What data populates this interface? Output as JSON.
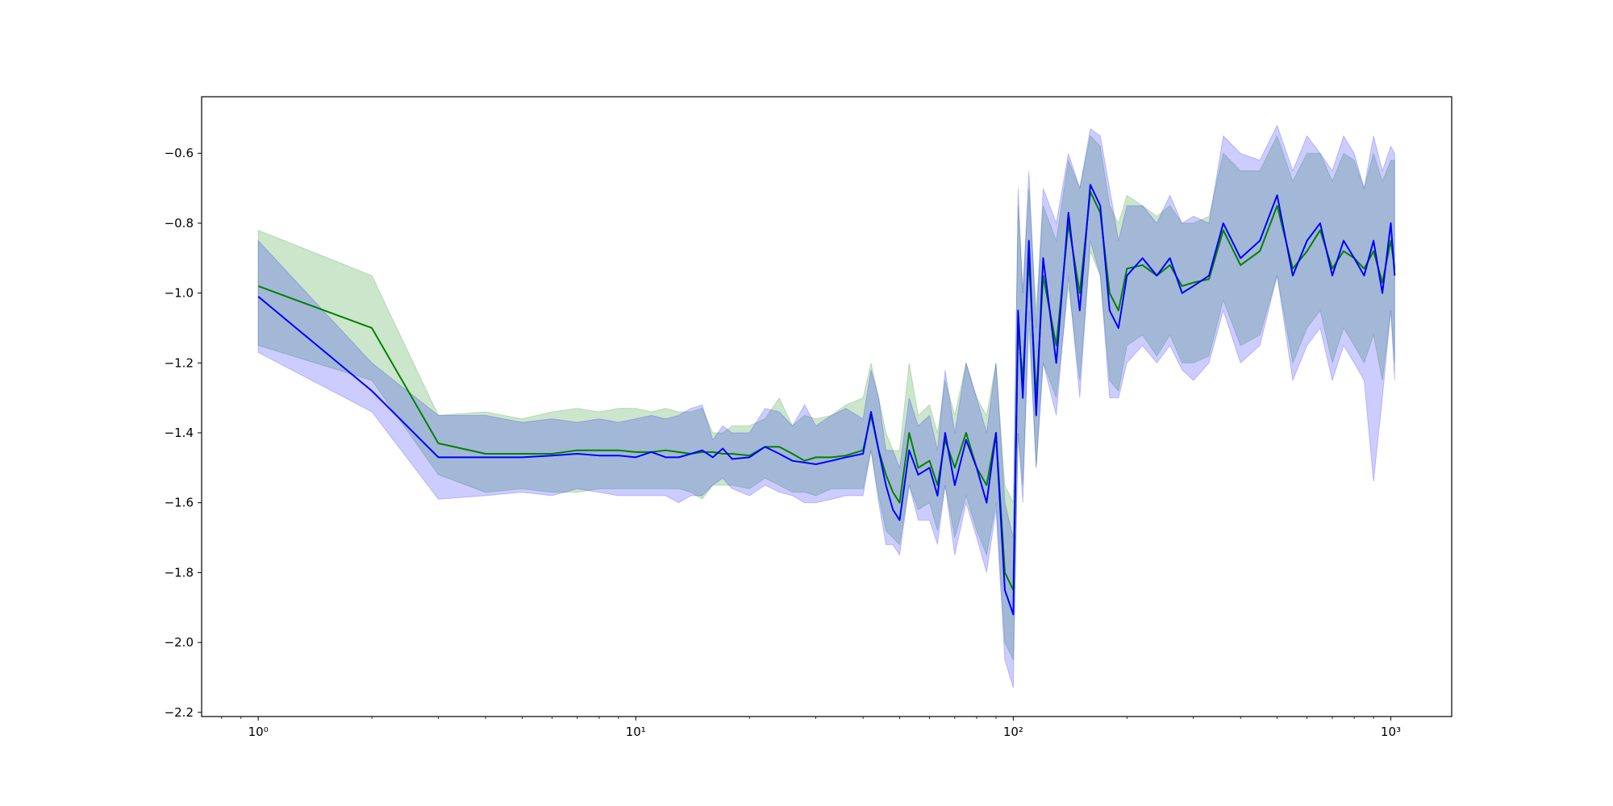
{
  "chart_data": {
    "type": "line",
    "xscale": "log",
    "xlim": [
      0.708,
      1450
    ],
    "ylim": [
      -2.212,
      -0.438
    ],
    "xticks": [
      {
        "value": 1,
        "label": "10⁰"
      },
      {
        "value": 10,
        "label": "10¹"
      },
      {
        "value": 100,
        "label": "10²"
      },
      {
        "value": 1000,
        "label": "10³"
      }
    ],
    "xminorticks": [
      0.8,
      0.9,
      2,
      3,
      4,
      5,
      6,
      7,
      8,
      9,
      20,
      30,
      40,
      50,
      60,
      70,
      80,
      90,
      200,
      300,
      400,
      500,
      600,
      700,
      800,
      900
    ],
    "yticks": [
      {
        "value": -0.6,
        "label": "−0.6"
      },
      {
        "value": -0.8,
        "label": "−0.8"
      },
      {
        "value": -1.0,
        "label": "−1.0"
      },
      {
        "value": -1.2,
        "label": "−1.2"
      },
      {
        "value": -1.4,
        "label": "−1.4"
      },
      {
        "value": -1.6,
        "label": "−1.6"
      },
      {
        "value": -1.8,
        "label": "−1.8"
      },
      {
        "value": -2.0,
        "label": "−2.0"
      },
      {
        "value": -2.2,
        "label": "−2.2"
      }
    ],
    "x": [
      1,
      2,
      3,
      4,
      5,
      6,
      7,
      8,
      9,
      10,
      11,
      12,
      13,
      14,
      15,
      16,
      17,
      18,
      20,
      22,
      24,
      26,
      28,
      30,
      33,
      36,
      40,
      42,
      44,
      46,
      48,
      50,
      53,
      56,
      60,
      63,
      66,
      70,
      75,
      80,
      85,
      90,
      95,
      100,
      103,
      106,
      110,
      115,
      120,
      130,
      140,
      150,
      160,
      170,
      180,
      190,
      200,
      220,
      240,
      260,
      280,
      300,
      330,
      360,
      400,
      450,
      500,
      550,
      600,
      650,
      700,
      750,
      800,
      850,
      900,
      950,
      1000,
      1024
    ],
    "series": [
      {
        "color": "#008000",
        "band_opacity": 0.2,
        "values": [
          -0.98,
          -1.1,
          -1.43,
          -1.46,
          -1.46,
          -1.46,
          -1.45,
          -1.45,
          -1.45,
          -1.455,
          -1.455,
          -1.45,
          -1.455,
          -1.46,
          -1.455,
          -1.455,
          -1.46,
          -1.46,
          -1.465,
          -1.44,
          -1.44,
          -1.46,
          -1.48,
          -1.47,
          -1.47,
          -1.465,
          -1.45,
          -1.35,
          -1.45,
          -1.52,
          -1.57,
          -1.6,
          -1.4,
          -1.5,
          -1.48,
          -1.55,
          -1.42,
          -1.5,
          -1.4,
          -1.5,
          -1.55,
          -1.4,
          -1.8,
          -1.85,
          -1.1,
          -1.25,
          -0.9,
          -1.3,
          -0.95,
          -1.15,
          -0.8,
          -1.0,
          -0.71,
          -0.77,
          -1.0,
          -1.05,
          -0.93,
          -0.92,
          -0.95,
          -0.92,
          -0.98,
          -0.97,
          -0.96,
          -0.82,
          -0.92,
          -0.88,
          -0.75,
          -0.93,
          -0.88,
          -0.82,
          -0.93,
          -0.88,
          -0.9,
          -0.93,
          -0.88,
          -0.97,
          -0.85,
          -0.93
        ],
        "upper": [
          -0.82,
          -0.95,
          -1.35,
          -1.34,
          -1.36,
          -1.34,
          -1.33,
          -1.34,
          -1.33,
          -1.33,
          -1.34,
          -1.33,
          -1.34,
          -1.34,
          -1.33,
          -1.4,
          -1.4,
          -1.38,
          -1.38,
          -1.36,
          -1.3,
          -1.38,
          -1.35,
          -1.36,
          -1.35,
          -1.32,
          -1.3,
          -1.2,
          -1.3,
          -1.4,
          -1.45,
          -1.45,
          -1.2,
          -1.35,
          -1.32,
          -1.4,
          -1.25,
          -1.35,
          -1.2,
          -1.3,
          -1.35,
          -1.2,
          -1.55,
          -1.6,
          -0.75,
          -1.0,
          -0.7,
          -1.05,
          -0.75,
          -0.85,
          -0.62,
          -0.7,
          -0.55,
          -0.58,
          -0.75,
          -0.8,
          -0.72,
          -0.75,
          -0.78,
          -0.75,
          -0.8,
          -0.8,
          -0.78,
          -0.6,
          -0.65,
          -0.65,
          -0.55,
          -0.68,
          -0.6,
          -0.6,
          -0.68,
          -0.6,
          -0.62,
          -0.7,
          -0.6,
          -0.68,
          -0.62,
          -0.62
        ],
        "lower": [
          -1.15,
          -1.25,
          -1.52,
          -1.57,
          -1.56,
          -1.57,
          -1.57,
          -1.56,
          -1.56,
          -1.56,
          -1.56,
          -1.56,
          -1.56,
          -1.57,
          -1.59,
          -1.55,
          -1.55,
          -1.55,
          -1.56,
          -1.53,
          -1.55,
          -1.57,
          -1.57,
          -1.58,
          -1.56,
          -1.56,
          -1.56,
          -1.45,
          -1.58,
          -1.68,
          -1.7,
          -1.72,
          -1.55,
          -1.62,
          -1.6,
          -1.68,
          -1.55,
          -1.7,
          -1.58,
          -1.68,
          -1.75,
          -1.6,
          -2.0,
          -2.05,
          -1.4,
          -1.55,
          -1.1,
          -1.5,
          -1.2,
          -1.3,
          -0.98,
          -1.25,
          -0.88,
          -0.95,
          -1.25,
          -1.28,
          -1.15,
          -1.12,
          -1.18,
          -1.12,
          -1.2,
          -1.2,
          -1.18,
          -1.02,
          -1.15,
          -1.12,
          -0.95,
          -1.2,
          -1.1,
          -1.05,
          -1.2,
          -1.1,
          -1.15,
          -1.2,
          -1.12,
          -1.25,
          -1.05,
          -1.2
        ]
      },
      {
        "color": "#0000ff",
        "band_opacity": 0.2,
        "values": [
          -1.01,
          -1.28,
          -1.47,
          -1.47,
          -1.47,
          -1.465,
          -1.46,
          -1.465,
          -1.465,
          -1.47,
          -1.455,
          -1.47,
          -1.47,
          -1.46,
          -1.45,
          -1.47,
          -1.445,
          -1.475,
          -1.47,
          -1.44,
          -1.46,
          -1.48,
          -1.485,
          -1.49,
          -1.48,
          -1.47,
          -1.46,
          -1.34,
          -1.45,
          -1.55,
          -1.62,
          -1.65,
          -1.45,
          -1.52,
          -1.5,
          -1.58,
          -1.4,
          -1.55,
          -1.42,
          -1.5,
          -1.6,
          -1.4,
          -1.85,
          -1.92,
          -1.05,
          -1.3,
          -0.85,
          -1.35,
          -0.9,
          -1.2,
          -0.77,
          -1.05,
          -0.69,
          -0.75,
          -1.05,
          -1.1,
          -0.95,
          -0.9,
          -0.95,
          -0.9,
          -1.0,
          -0.98,
          -0.95,
          -0.8,
          -0.9,
          -0.85,
          -0.72,
          -0.95,
          -0.85,
          -0.8,
          -0.95,
          -0.85,
          -0.9,
          -0.95,
          -0.85,
          -1.0,
          -0.8,
          -0.95
        ],
        "upper": [
          -0.85,
          -1.2,
          -1.35,
          -1.35,
          -1.37,
          -1.36,
          -1.37,
          -1.36,
          -1.37,
          -1.36,
          -1.35,
          -1.36,
          -1.35,
          -1.33,
          -1.32,
          -1.42,
          -1.38,
          -1.4,
          -1.4,
          -1.33,
          -1.34,
          -1.38,
          -1.32,
          -1.38,
          -1.35,
          -1.33,
          -1.36,
          -1.22,
          -1.3,
          -1.45,
          -1.45,
          -1.5,
          -1.3,
          -1.38,
          -1.35,
          -1.45,
          -1.22,
          -1.4,
          -1.2,
          -1.3,
          -1.4,
          -1.2,
          -1.6,
          -1.7,
          -0.7,
          -1.0,
          -0.65,
          -1.1,
          -0.7,
          -0.8,
          -0.6,
          -0.7,
          -0.53,
          -0.55,
          -0.7,
          -0.85,
          -0.75,
          -0.75,
          -0.8,
          -0.72,
          -0.8,
          -0.78,
          -0.8,
          -0.55,
          -0.6,
          -0.62,
          -0.52,
          -0.65,
          -0.55,
          -0.6,
          -0.65,
          -0.55,
          -0.6,
          -0.7,
          -0.55,
          -0.65,
          -0.58,
          -0.6
        ],
        "lower": [
          -1.17,
          -1.34,
          -1.59,
          -1.58,
          -1.57,
          -1.58,
          -1.56,
          -1.57,
          -1.58,
          -1.58,
          -1.58,
          -1.58,
          -1.6,
          -1.58,
          -1.58,
          -1.55,
          -1.53,
          -1.56,
          -1.58,
          -1.55,
          -1.57,
          -1.58,
          -1.6,
          -1.6,
          -1.59,
          -1.58,
          -1.58,
          -1.45,
          -1.6,
          -1.72,
          -1.72,
          -1.75,
          -1.55,
          -1.65,
          -1.65,
          -1.72,
          -1.55,
          -1.75,
          -1.6,
          -1.7,
          -1.8,
          -1.62,
          -2.05,
          -2.13,
          -1.4,
          -1.6,
          -1.05,
          -1.5,
          -1.2,
          -1.35,
          -0.95,
          -1.3,
          -0.85,
          -0.95,
          -1.3,
          -1.3,
          -1.2,
          -1.15,
          -1.2,
          -1.15,
          -1.22,
          -1.25,
          -1.2,
          -1.05,
          -1.2,
          -1.15,
          -0.95,
          -1.25,
          -1.15,
          -1.1,
          -1.25,
          -1.15,
          -1.2,
          -1.25,
          -1.54,
          -1.3,
          -1.05,
          -1.25
        ]
      }
    ]
  }
}
